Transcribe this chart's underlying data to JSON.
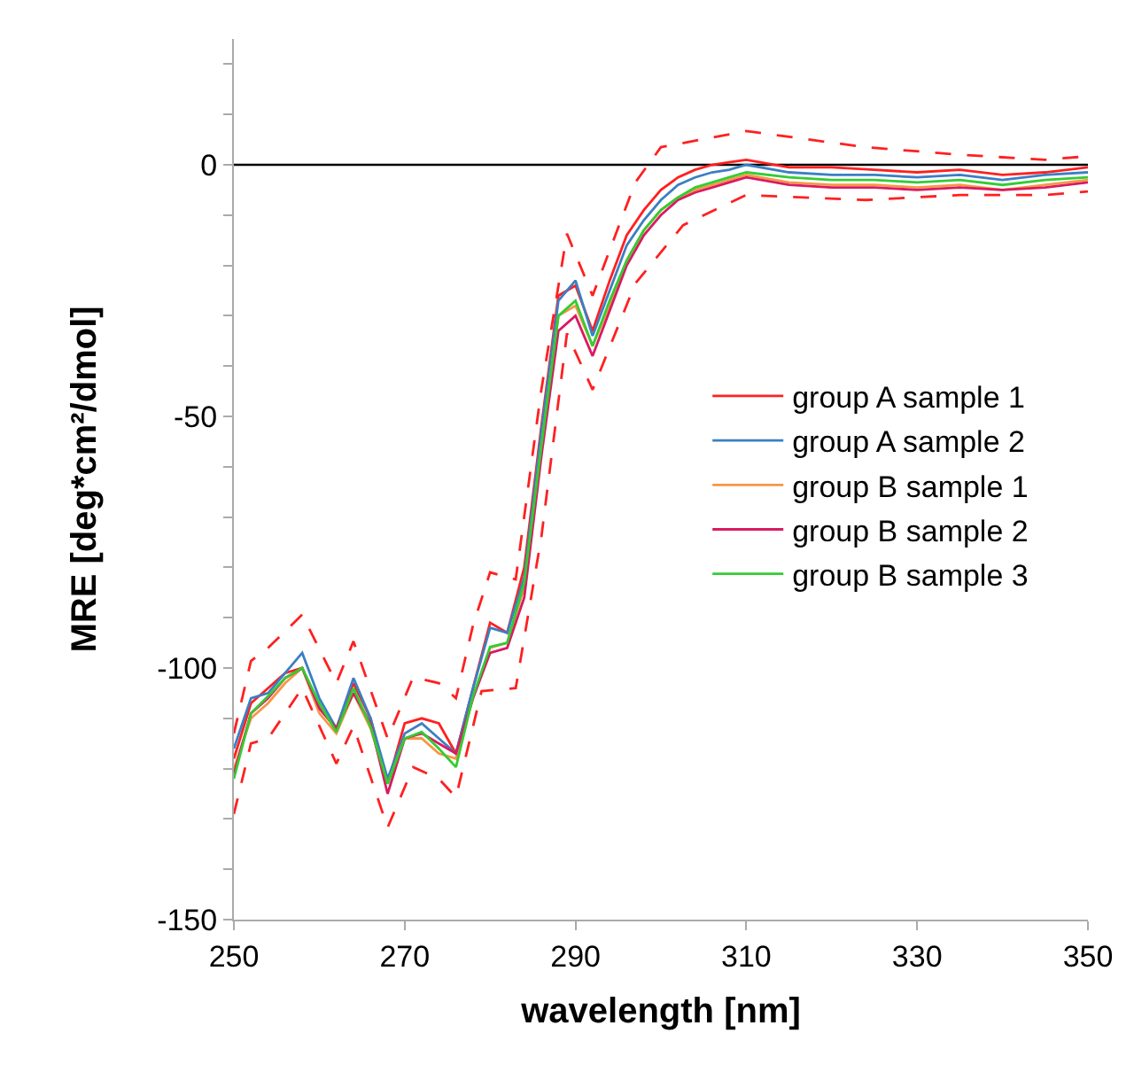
{
  "chart_data": {
    "type": "line",
    "xlabel": "wavelength [nm]",
    "ylabel": "MRE [deg*cm²/dmol]",
    "x": [
      250,
      252,
      254,
      256,
      258,
      260,
      262,
      264,
      266,
      268,
      270,
      272,
      274,
      276,
      278,
      280,
      282,
      284,
      286,
      288,
      290,
      292,
      294,
      296,
      298,
      300,
      302,
      304,
      306,
      308,
      310,
      315,
      320,
      325,
      330,
      335,
      340,
      345,
      350
    ],
    "series": [
      {
        "name": "group A sample 1",
        "color": "#ff2020",
        "values": [
          -118,
          -107,
          -104,
          -101,
          -100,
          -108,
          -112,
          -103,
          -110,
          -123,
          -111,
          -110,
          -111,
          -117,
          -104,
          -91,
          -93,
          -80,
          -52,
          -26,
          -24,
          -33,
          -23,
          -14,
          -9,
          -5,
          -2.5,
          -1,
          0,
          0.5,
          1,
          -0.5,
          -0.5,
          -1,
          -1.5,
          -1,
          -2,
          -1.5,
          -0.5
        ]
      },
      {
        "name": "group A sample 2",
        "color": "#3a7fc4",
        "values": [
          -116,
          -106,
          -105,
          -101,
          -97,
          -106,
          -112,
          -102,
          -110,
          -122,
          -113,
          -111,
          -114,
          -117,
          -104,
          -92,
          -93,
          -82,
          -53,
          -27,
          -23,
          -34,
          -25,
          -16,
          -11,
          -7,
          -4,
          -2.5,
          -1.5,
          -1,
          0,
          -1.5,
          -2,
          -2,
          -2.5,
          -2,
          -3,
          -2,
          -1.5
        ]
      },
      {
        "name": "group B sample 1",
        "color": "#f79646",
        "values": [
          -120,
          -110,
          -107,
          -103,
          -100,
          -109,
          -113,
          -105,
          -112,
          -123,
          -114,
          -114,
          -117,
          -118,
          -106,
          -96,
          -95,
          -84,
          -56,
          -30,
          -28,
          -36,
          -28,
          -19,
          -13,
          -9,
          -6.5,
          -5,
          -4,
          -3,
          -2,
          -3.5,
          -4,
          -4,
          -4.5,
          -4,
          -5,
          -4,
          -3
        ]
      },
      {
        "name": "group B sample 2",
        "color": "#d81b60",
        "values": [
          -121,
          -109,
          -106,
          -102,
          -100,
          -108,
          -112,
          -105,
          -111,
          -125,
          -114,
          -113,
          -115,
          -117,
          -106,
          -97,
          -96,
          -86,
          -58,
          -33,
          -30,
          -38,
          -29,
          -20,
          -14,
          -10,
          -7,
          -5.5,
          -4.5,
          -3.5,
          -2.5,
          -4,
          -4.5,
          -4.5,
          -5,
          -4.5,
          -5,
          -4.5,
          -3.5
        ]
      },
      {
        "name": "group B sample 3",
        "color": "#33cc33",
        "values": [
          -122,
          -109,
          -105.6,
          -102,
          -100,
          -107,
          -112.7,
          -104,
          -111.6,
          -123,
          -114,
          -112.7,
          -116,
          -119.7,
          -105.6,
          -95.8,
          -95,
          -83,
          -56,
          -30,
          -27,
          -36,
          -27,
          -19,
          -13,
          -9,
          -6.5,
          -4.5,
          -3.5,
          -2.5,
          -1.5,
          -2.5,
          -3,
          -3,
          -3.5,
          -3,
          -4,
          -3,
          -2.5
        ]
      },
      {
        "color": "#ff2020",
        "line_style": "dashed",
        "x": [
          250,
          252,
          254,
          258,
          262,
          264,
          268,
          271,
          274,
          276,
          278,
          280,
          283,
          286,
          289,
          292,
          297,
          300,
          310,
          324,
          335,
          345,
          350
        ],
        "values": [
          -113,
          -98.6,
          -96,
          -89.4,
          -103,
          -94.7,
          -114,
          -101.8,
          -103,
          -106,
          -91.5,
          -81,
          -82.4,
          -44.7,
          -13.7,
          -26,
          -3.5,
          3.5,
          6.7,
          3.5,
          2,
          1,
          1.7
        ]
      },
      {
        "color": "#ff2020",
        "line_style": "dashed",
        "x": [
          250,
          252,
          254,
          258,
          262,
          264,
          268,
          271,
          274,
          276,
          279,
          283,
          286,
          289,
          292,
          297,
          302.6,
          310,
          324,
          335,
          345,
          350
        ],
        "values": [
          -129,
          -115,
          -114,
          -104,
          -119,
          -111.6,
          -131.7,
          -119.7,
          -122,
          -125.7,
          -104.6,
          -104,
          -74,
          -33.5,
          -44.7,
          -23.6,
          -12,
          -6,
          -7,
          -6,
          -6,
          -5.3
        ]
      }
    ],
    "xlim": [
      250,
      350
    ],
    "xticks": [
      250,
      270,
      290,
      310,
      330,
      350
    ],
    "ylim": [
      -150,
      25
    ],
    "yticks": [
      {
        "value": 20,
        "label": null
      },
      {
        "value": 10,
        "label": null
      },
      0,
      {
        "value": -10,
        "label": null
      },
      {
        "value": -20,
        "label": null
      },
      {
        "value": -30,
        "label": null
      },
      {
        "value": -40,
        "label": null
      },
      -50,
      {
        "value": -60,
        "label": null
      },
      {
        "value": -70,
        "label": null
      },
      {
        "value": -80,
        "label": null
      },
      {
        "value": -90,
        "label": null
      },
      -100,
      {
        "value": -110,
        "label": null
      },
      {
        "value": -120,
        "label": null
      },
      {
        "value": -130,
        "label": null
      },
      {
        "value": -140,
        "label": null
      },
      -150
    ],
    "ref_lines": [
      {
        "axis": "y",
        "value": 0,
        "color": "#000000"
      }
    ],
    "grid": false,
    "legend": "right",
    "marker": "none",
    "line_style": "solid"
  }
}
